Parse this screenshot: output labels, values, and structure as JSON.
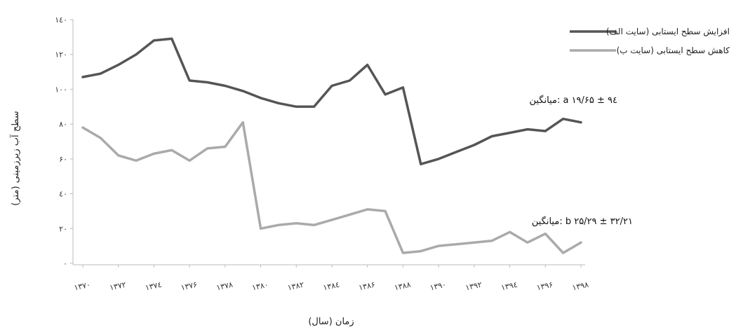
{
  "chart_data": {
    "type": "line",
    "xlabel": "زمان (سال)",
    "ylabel": "سطح آب زیرزمینی (متر)",
    "ylim": [
      0,
      140
    ],
    "yticks": [
      "۰",
      "۲۰",
      "٤۰",
      "۶۰",
      "۸۰",
      "۱۰۰",
      "۱۲۰",
      "۱٤۰"
    ],
    "ytick_values": [
      0,
      20,
      40,
      60,
      80,
      100,
      120,
      140
    ],
    "xlim": [
      1370,
      1398
    ],
    "xticks": [
      "۱۳۷۰",
      "۱۳۷۲",
      "۱۳۷٤",
      "۱۳۷۶",
      "۱۳۷۸",
      "۱۳۸۰",
      "۱۳۸۲",
      "۱۳۸٤",
      "۱۳۸۶",
      "۱۳۸۸",
      "۱۳۹۰",
      "۱۳۹۲",
      "۱۳۹٤",
      "۱۳۹۶",
      "۱۳۹۸"
    ],
    "xtick_values": [
      1370,
      1372,
      1374,
      1376,
      1378,
      1380,
      1382,
      1384,
      1386,
      1388,
      1390,
      1392,
      1394,
      1396,
      1398
    ],
    "x": [
      1370,
      1371,
      1372,
      1373,
      1374,
      1375,
      1376,
      1377,
      1378,
      1379,
      1380,
      1381,
      1382,
      1383,
      1384,
      1385,
      1386,
      1387,
      1388,
      1389,
      1390,
      1391,
      1392,
      1393,
      1394,
      1395,
      1396,
      1397,
      1398
    ],
    "legend_position": "top-right",
    "grid": false,
    "series": [
      {
        "name": "(سایت الف) افزایش سطح ایستابی",
        "color": "#555555",
        "values": [
          107,
          109,
          114,
          120,
          128,
          129,
          105,
          104,
          102,
          99,
          95,
          92,
          90,
          90,
          102,
          105,
          114,
          97,
          101,
          57,
          60,
          64,
          68,
          73,
          75,
          77,
          76,
          83,
          81
        ]
      },
      {
        "name": "(سایت ب)   کاهش سطح ایستابی",
        "color": "#aaaaaa",
        "values": [
          78,
          72,
          62,
          59,
          63,
          65,
          59,
          66,
          67,
          81,
          20,
          22,
          23,
          22,
          25,
          28,
          31,
          30,
          6,
          7,
          10,
          11,
          12,
          13,
          18,
          12,
          17,
          6,
          12
        ]
      }
    ],
    "annotations": [
      {
        "text": "میانگین: a ۱۹/۶۵ ± ۹٤"
      },
      {
        "text": "میانگین: b ۲۵/۲۹ ± ۳۲/۲۱"
      }
    ]
  }
}
